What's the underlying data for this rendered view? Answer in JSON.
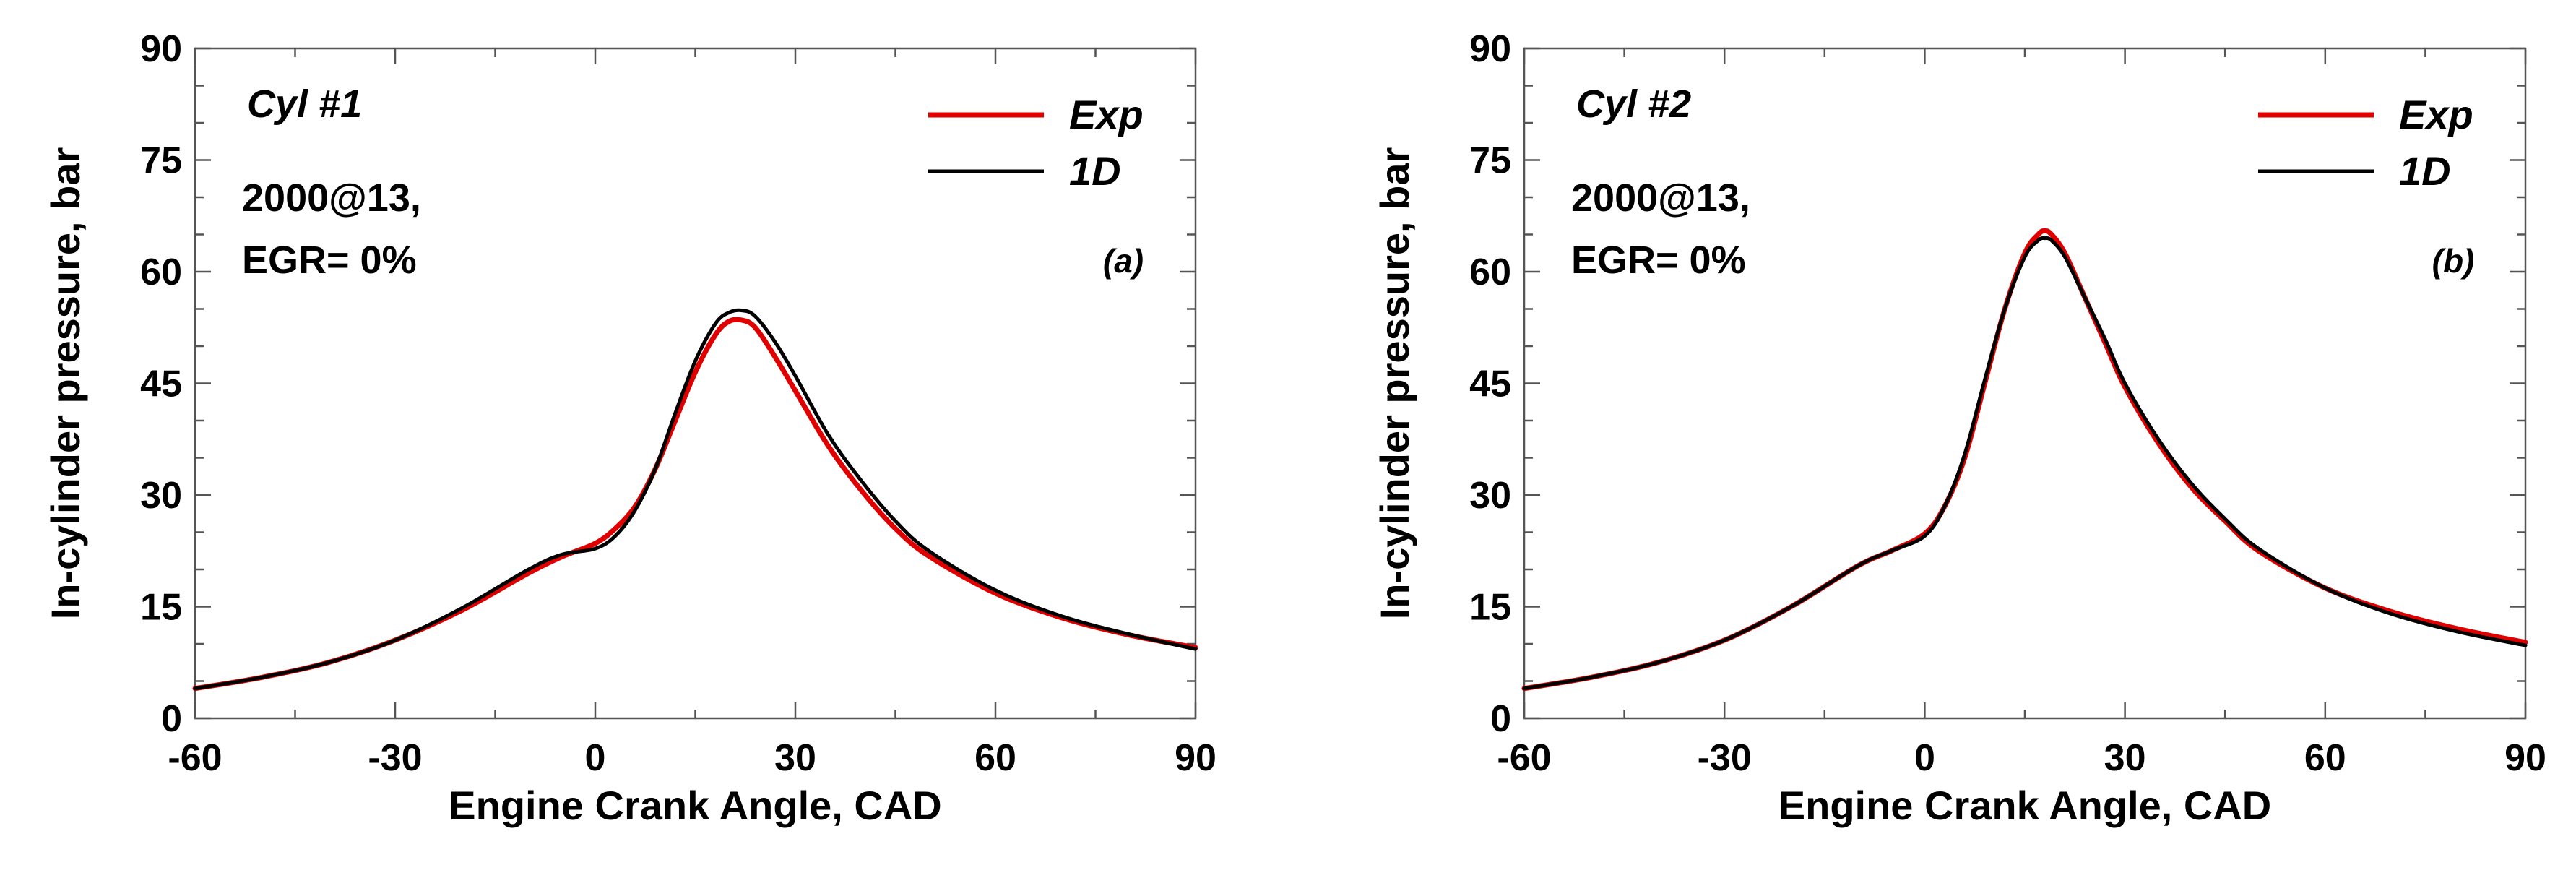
{
  "chart_data": [
    {
      "type": "line",
      "panel": "(a)",
      "cylinder": "Cyl #1",
      "condition": [
        "2000@13,",
        "EGR= 0%"
      ],
      "xlabel": "Engine Crank Angle, CAD",
      "ylabel": "In-cylinder pressure, bar",
      "xlim": [
        -60,
        90
      ],
      "ylim": [
        0,
        90
      ],
      "xticks": [
        -60,
        -30,
        0,
        30,
        60,
        90
      ],
      "yticks": [
        0,
        15,
        30,
        45,
        60,
        75,
        90
      ],
      "legend_position": "top-right",
      "series": [
        {
          "name": "Exp",
          "color": "#e00000",
          "x": [
            -60,
            -50,
            -40,
            -30,
            -20,
            -10,
            -5,
            0,
            3,
            6,
            9,
            12,
            15,
            18,
            20,
            22,
            24,
            27,
            30,
            35,
            40,
            45,
            50,
            60,
            70,
            80,
            90
          ],
          "y": [
            4.0,
            5.5,
            7.5,
            10.5,
            14.5,
            19.5,
            21.7,
            23.5,
            25.5,
            28.5,
            33.5,
            40.0,
            46.5,
            51.5,
            53.3,
            53.5,
            52.5,
            48.5,
            44.0,
            36.5,
            30.5,
            25.5,
            21.8,
            16.8,
            13.5,
            11.2,
            9.5
          ]
        },
        {
          "name": "1D",
          "color": "#000000",
          "x": [
            -60,
            -50,
            -40,
            -30,
            -20,
            -10,
            -5,
            0,
            3,
            6,
            9,
            12,
            15,
            18,
            20,
            22,
            24,
            27,
            30,
            35,
            40,
            45,
            50,
            60,
            70,
            80,
            90
          ],
          "y": [
            4.0,
            5.5,
            7.5,
            10.5,
            14.8,
            20.0,
            22.0,
            22.8,
            24.5,
            28.0,
            33.5,
            41.0,
            48.0,
            53.0,
            54.5,
            54.8,
            54.0,
            50.5,
            46.0,
            38.0,
            31.8,
            26.5,
            22.5,
            17.2,
            13.7,
            11.3,
            9.3
          ]
        }
      ]
    },
    {
      "type": "line",
      "panel": "(b)",
      "cylinder": "Cyl #2",
      "condition": [
        "2000@13,",
        "EGR= 0%"
      ],
      "xlabel": "Engine Crank Angle, CAD",
      "ylabel": "In-cylinder pressure, bar",
      "xlim": [
        -60,
        90
      ],
      "ylim": [
        0,
        90
      ],
      "xticks": [
        -60,
        -30,
        0,
        30,
        60,
        90
      ],
      "yticks": [
        0,
        15,
        30,
        45,
        60,
        75,
        90
      ],
      "legend_position": "top-right",
      "series": [
        {
          "name": "Exp",
          "color": "#e00000",
          "x": [
            -60,
            -50,
            -40,
            -30,
            -20,
            -10,
            -5,
            0,
            3,
            6,
            9,
            12,
            15,
            17,
            18,
            19,
            21,
            24,
            27,
            30,
            35,
            40,
            45,
            50,
            60,
            70,
            80,
            90
          ],
          "y": [
            4.0,
            5.5,
            7.5,
            10.5,
            15.0,
            20.5,
            22.5,
            24.8,
            28.5,
            35.0,
            45.0,
            55.0,
            62.5,
            65.0,
            65.5,
            65.0,
            62.5,
            56.5,
            50.5,
            44.5,
            37.0,
            31.0,
            26.5,
            22.5,
            17.5,
            14.3,
            12.0,
            10.2
          ]
        },
        {
          "name": "1D",
          "color": "#000000",
          "x": [
            -60,
            -50,
            -40,
            -30,
            -20,
            -10,
            -5,
            0,
            3,
            6,
            9,
            12,
            15,
            17,
            18,
            19,
            21,
            24,
            27,
            30,
            35,
            40,
            45,
            50,
            60,
            70,
            80,
            90
          ],
          "y": [
            4.0,
            5.5,
            7.5,
            10.5,
            15.0,
            20.5,
            22.5,
            24.5,
            28.5,
            35.5,
            45.5,
            55.0,
            62.0,
            64.2,
            64.5,
            64.2,
            62.0,
            56.5,
            51.0,
            45.0,
            37.5,
            31.5,
            26.8,
            22.8,
            17.5,
            14.0,
            11.6,
            9.8
          ]
        }
      ]
    }
  ]
}
